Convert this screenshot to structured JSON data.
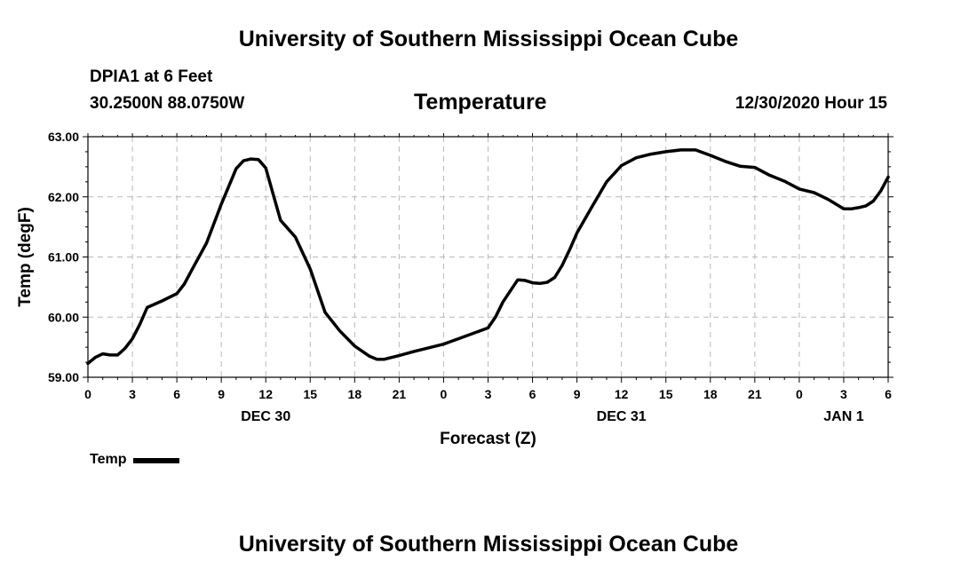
{
  "header": {
    "title": "University of Southern Mississippi Ocean Cube",
    "station": "DPIA1 at 6 Feet",
    "coords": "30.2500N 88.0750W",
    "variable": "Temperature",
    "timestamp": "12/30/2020 Hour 15"
  },
  "footer": {
    "title": "University of Southern Mississippi Ocean Cube"
  },
  "chart_data": {
    "type": "line",
    "title": "Temperature",
    "xlabel": "Forecast (Z)",
    "ylabel": "Temp (degF)",
    "xlim": [
      0,
      54
    ],
    "ylim": [
      59.0,
      63.0
    ],
    "grid": true,
    "legend_position": "bottom-left",
    "y_ticks": [
      59.0,
      60.0,
      61.0,
      62.0,
      63.0
    ],
    "y_tick_labels": [
      "59.00",
      "60.00",
      "61.00",
      "62.00",
      "63.00"
    ],
    "x_ticks": [
      0,
      3,
      6,
      9,
      12,
      15,
      18,
      21,
      24,
      27,
      30,
      33,
      36,
      39,
      42,
      45,
      48,
      51,
      54
    ],
    "x_tick_labels": [
      "0",
      "3",
      "6",
      "9",
      "12",
      "15",
      "18",
      "21",
      "0",
      "3",
      "6",
      "9",
      "12",
      "15",
      "18",
      "21",
      "0",
      "3",
      "6"
    ],
    "date_labels": [
      {
        "x": 12,
        "label": "DEC 30"
      },
      {
        "x": 36,
        "label": "DEC 31"
      },
      {
        "x": 51,
        "label": "JAN 1"
      }
    ],
    "series": [
      {
        "name": "Temp",
        "color": "#000000",
        "x": [
          0,
          0.5,
          1,
          1.5,
          2,
          2.5,
          3,
          3.5,
          4,
          5,
          6,
          6.5,
          7,
          8,
          9,
          10,
          10.5,
          11,
          11.5,
          12,
          12.5,
          13,
          14,
          15,
          16,
          17,
          18,
          19,
          19.5,
          20,
          21,
          22,
          23,
          24,
          25,
          26,
          27,
          27.5,
          28,
          29,
          29.5,
          30,
          30.5,
          31,
          31.5,
          32,
          32.5,
          33,
          34,
          35,
          36,
          37,
          38,
          39,
          40,
          41,
          42,
          43,
          44,
          45,
          46,
          47,
          48,
          49,
          50,
          51,
          51.5,
          52,
          52.5,
          53,
          53.5,
          54
        ],
        "values": [
          59.23,
          59.33,
          59.39,
          59.37,
          59.37,
          59.48,
          59.64,
          59.88,
          60.16,
          60.27,
          60.39,
          60.55,
          60.78,
          61.23,
          61.88,
          62.47,
          62.6,
          62.63,
          62.62,
          62.48,
          62.04,
          61.61,
          61.33,
          60.8,
          60.08,
          59.77,
          59.52,
          59.35,
          59.3,
          59.3,
          59.36,
          59.43,
          59.49,
          59.55,
          59.64,
          59.73,
          59.82,
          60.0,
          60.25,
          60.62,
          60.61,
          60.57,
          60.56,
          60.58,
          60.66,
          60.86,
          61.12,
          61.4,
          61.83,
          62.25,
          62.52,
          62.65,
          62.71,
          62.75,
          62.78,
          62.78,
          62.69,
          62.59,
          62.51,
          62.49,
          62.36,
          62.26,
          62.13,
          62.07,
          61.95,
          61.8,
          61.8,
          61.82,
          61.85,
          61.93,
          62.1,
          62.33
        ]
      }
    ]
  },
  "legend": {
    "label": "Temp"
  }
}
